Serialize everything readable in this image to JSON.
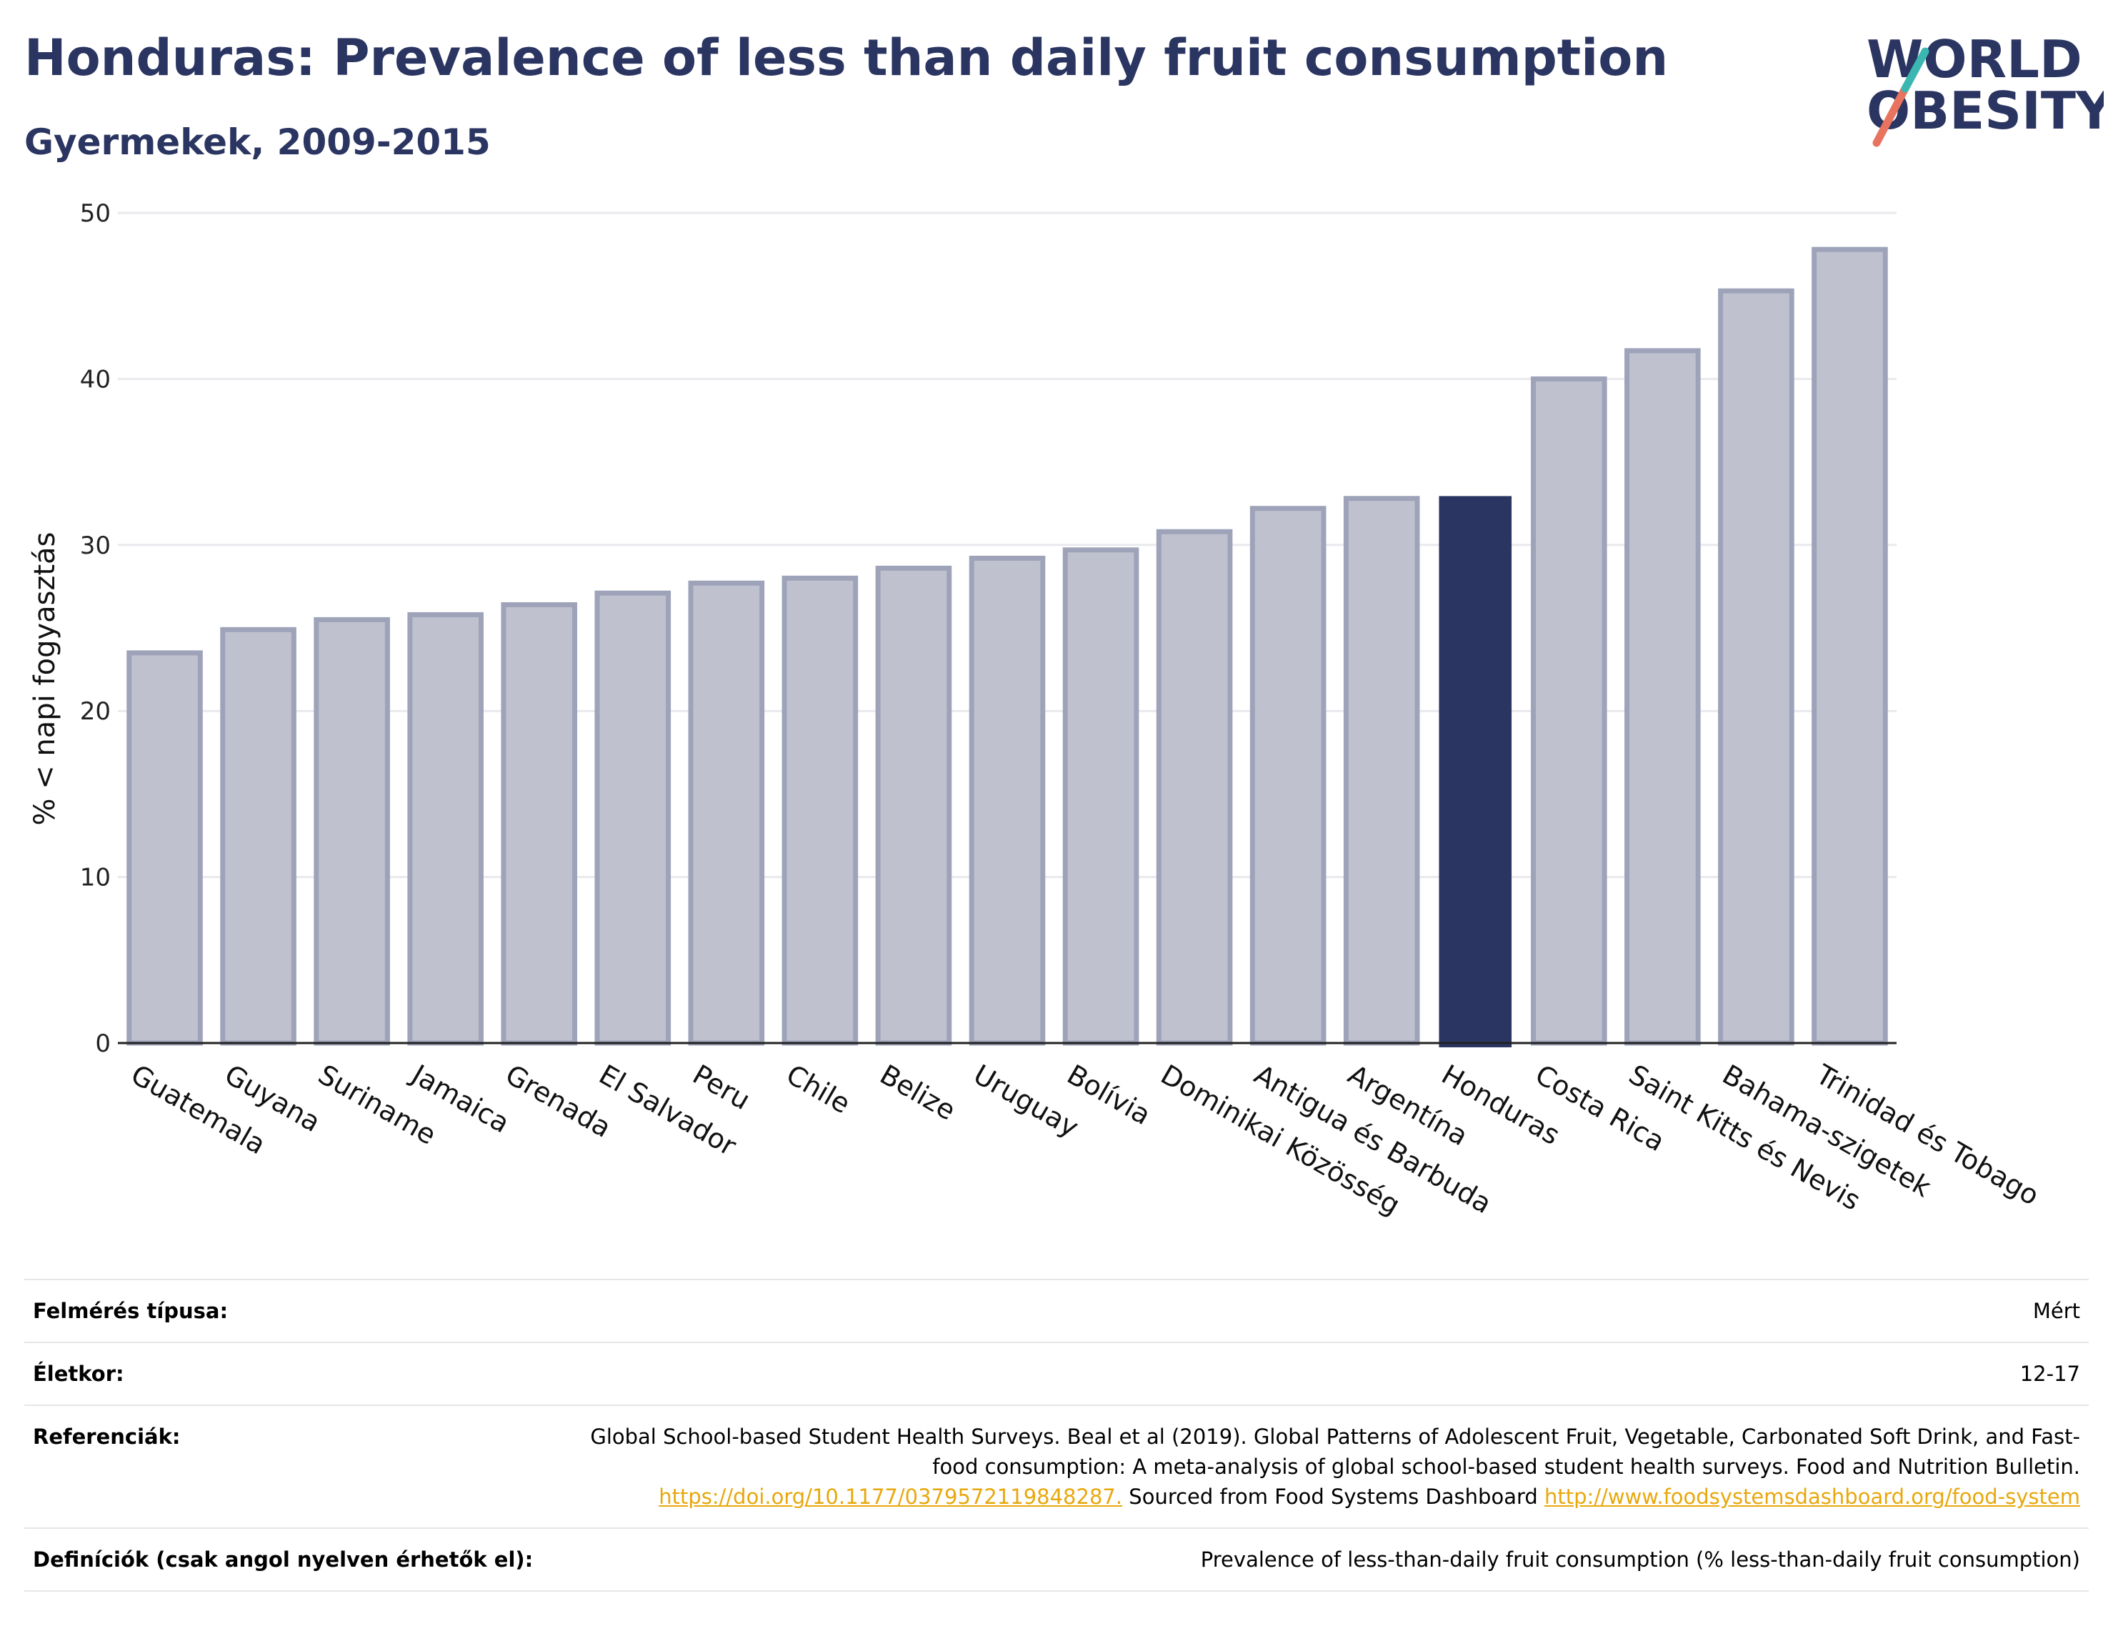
{
  "header": {
    "title": "Honduras: Prevalence of less than daily fruit consumption",
    "subtitle": "Gyermekek, 2009-2015"
  },
  "logo": {
    "line1": "WORLD",
    "line2": "OBESITY",
    "text_color": "#2b3561",
    "slash_colors": [
      "#e8735f",
      "#3bb6b0"
    ]
  },
  "chart_data": {
    "type": "bar",
    "ylabel": "% < napi fogyasztás",
    "ylim": [
      0,
      50
    ],
    "yticks": [
      0,
      10,
      20,
      30,
      40,
      50
    ],
    "grid": true,
    "categories": [
      "Guatemala",
      "Guyana",
      "Suriname",
      "Jamaica",
      "Grenada",
      "El Salvador",
      "Peru",
      "Chile",
      "Belize",
      "Uruguay",
      "Bolívia",
      "Dominikai Közösség",
      "Antigua és Barbuda",
      "Argentína",
      "Honduras",
      "Costa Rica",
      "Saint Kitts és Nevis",
      "Bahama-szigetek",
      "Trinidad és Tobago"
    ],
    "values": [
      23.5,
      24.9,
      25.5,
      25.8,
      26.4,
      27.1,
      27.7,
      28.0,
      28.6,
      29.2,
      29.7,
      30.8,
      32.2,
      32.8,
      32.9,
      40.0,
      41.7,
      45.3,
      47.8
    ],
    "highlight": "Honduras",
    "colors": {
      "bar_fill": "#bfc2ce",
      "bar_stroke": "#9ea3b9",
      "highlight": "#2b3561",
      "grid": "#e9e9ee",
      "axis": "#222222"
    }
  },
  "table": {
    "rows": [
      {
        "label": "Felmérés típusa:",
        "value": "Mért"
      },
      {
        "label": "Életkor:",
        "value": "12-17"
      },
      {
        "label": "Referenciák:"
      },
      {
        "label": "Definíciók (csak angol nyelven érhetők el):",
        "value": "Prevalence of less-than-daily fruit consumption (% less-than-daily fruit consumption)"
      }
    ],
    "reference": {
      "text1": "Global School-based Student Health Surveys. Beal et al (2019). Global Patterns of Adolescent Fruit, Vegetable, Carbonated Soft Drink, and Fast-food consumption: A meta-analysis of global school-based student health surveys. Food and Nutrition Bulletin.",
      "link1": "https://doi.org/10.1177/0379572119848287.",
      "text2": "Sourced from Food Systems Dashboard",
      "link2": "http://www.foodsystemsdashboard.org/food-system"
    }
  }
}
